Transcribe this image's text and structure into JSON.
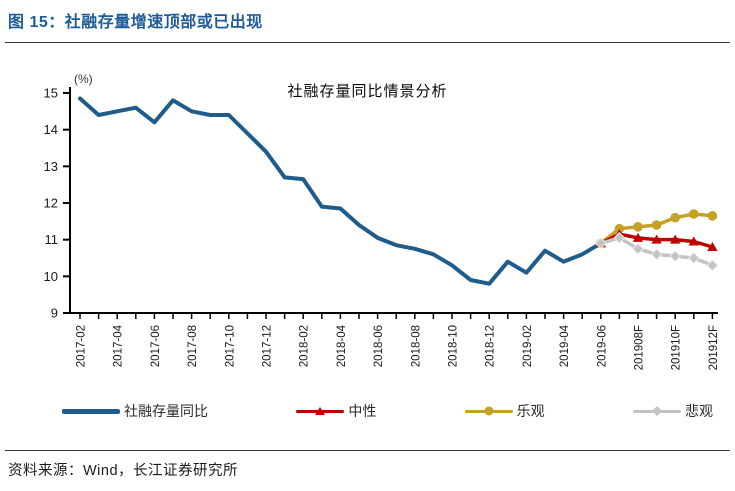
{
  "header": {
    "title": "图 15：社融存量增速顶部或已出现"
  },
  "footer": {
    "source": "资料来源：Wind，长江证券研究所"
  },
  "legend": {
    "items": [
      {
        "label": "社融存量同比",
        "marker": "line",
        "color": "#1F5C8C"
      },
      {
        "label": "中性",
        "marker": "triangle",
        "color": "#C00000"
      },
      {
        "label": "乐观",
        "marker": "circle",
        "color": "#C7A026"
      },
      {
        "label": "悲观",
        "marker": "diamond",
        "color": "#C3C3C3"
      }
    ]
  },
  "chart_data": {
    "type": "line",
    "title": "社融存量同比情景分析",
    "unit_label": "(%)",
    "ylim": [
      9,
      15
    ],
    "ytick_step": 1,
    "grid": false,
    "legend_position": "bottom",
    "n_points": 35,
    "x_label_step": 2,
    "x_labels": [
      "2017-02",
      "2017-04",
      "2017-06",
      "2017-08",
      "2017-10",
      "2017-12",
      "2018-02",
      "2018-04",
      "2018-06",
      "2018-08",
      "2018-10",
      "2018-12",
      "2019-02",
      "2019-04",
      "2019-06",
      "201908F",
      "201910F",
      "201912F"
    ],
    "series": [
      {
        "name": "社融存量同比",
        "color": "#1F5C8C",
        "marker": "none",
        "line_width": 4,
        "start_index": 0,
        "values": [
          14.85,
          14.4,
          14.5,
          14.6,
          14.2,
          14.8,
          14.5,
          14.4,
          14.4,
          13.9,
          13.4,
          12.7,
          12.65,
          11.9,
          11.85,
          11.4,
          11.05,
          10.85,
          10.75,
          10.6,
          10.3,
          9.9,
          9.8,
          10.4,
          10.1,
          10.7,
          10.4,
          10.6,
          10.9
        ]
      },
      {
        "name": "乐观",
        "color": "#C7A026",
        "marker": "circle",
        "line_width": 3.5,
        "start_index": 28,
        "values": [
          10.9,
          11.3,
          11.35,
          11.4,
          11.6,
          11.7,
          11.65
        ]
      },
      {
        "name": "中性",
        "color": "#C00000",
        "marker": "triangle",
        "line_width": 3.5,
        "start_index": 28,
        "values": [
          10.9,
          11.15,
          11.05,
          11.0,
          11.0,
          10.95,
          10.8
        ]
      },
      {
        "name": "悲观",
        "color": "#C3C3C3",
        "marker": "diamond",
        "line_width": 3.5,
        "start_index": 28,
        "values": [
          10.9,
          11.05,
          10.75,
          10.6,
          10.55,
          10.5,
          10.3
        ]
      }
    ]
  }
}
